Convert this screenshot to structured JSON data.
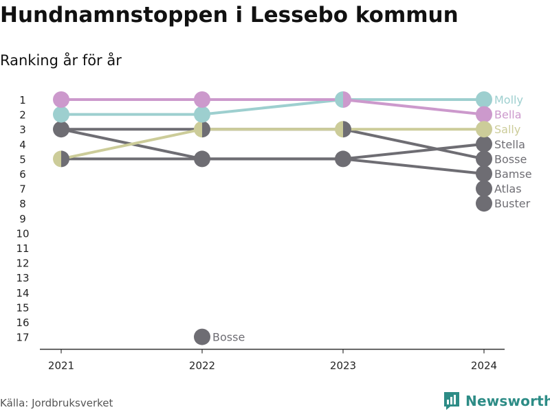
{
  "header": {
    "title": "Hundnamnstoppen i Lessebo kommun",
    "subtitle": "Ranking år för år"
  },
  "footer": {
    "source": "Källa: Jordbruksverket",
    "brand": "Newsworthy"
  },
  "colors": {
    "dark": "#6e6d73",
    "molly": "#9dcfcf",
    "bella": "#cc99cc",
    "sally": "#cccc99",
    "axis": "#333333",
    "brand": "#2d8c86"
  },
  "chart_data": {
    "type": "line",
    "title": "Hundnamnstoppen i Lessebo kommun",
    "subtitle": "Ranking år för år",
    "x": [
      2021,
      2022,
      2023,
      2024
    ],
    "x_tick_labels": [
      "2021",
      "2022",
      "2023",
      "2024"
    ],
    "y_tick_labels": [
      "1",
      "2",
      "3",
      "4",
      "5",
      "6",
      "7",
      "8",
      "9",
      "10",
      "11",
      "12",
      "13",
      "14",
      "15",
      "16",
      "17"
    ],
    "ylim": [
      1,
      17
    ],
    "y_reversed": true,
    "grid": false,
    "series": [
      {
        "name": "Molly",
        "color": "#9dcfcf",
        "values": [
          2,
          2,
          1,
          1
        ]
      },
      {
        "name": "Bella",
        "color": "#cc99cc",
        "values": [
          1,
          1,
          1,
          2
        ]
      },
      {
        "name": "Sally",
        "color": "#cccc99",
        "values": [
          5,
          3,
          3,
          3
        ]
      },
      {
        "name": "Stella",
        "color": "#6e6d73",
        "values": [
          3,
          5,
          5,
          4
        ]
      },
      {
        "name": "Bosse",
        "color": "#6e6d73",
        "values": [
          3,
          3,
          3,
          5
        ]
      },
      {
        "name": "Bamse",
        "color": "#6e6d73",
        "values": [
          5,
          5,
          5,
          6
        ]
      },
      {
        "name": "Atlas",
        "color": "#6e6d73",
        "values": [
          null,
          null,
          null,
          7
        ]
      },
      {
        "name": "Buster",
        "color": "#6e6d73",
        "values": [
          null,
          null,
          null,
          8
        ]
      }
    ],
    "annotations": [
      {
        "text": "Bosse",
        "x": 2022,
        "y": 17,
        "color": "#6e6d73"
      }
    ]
  }
}
